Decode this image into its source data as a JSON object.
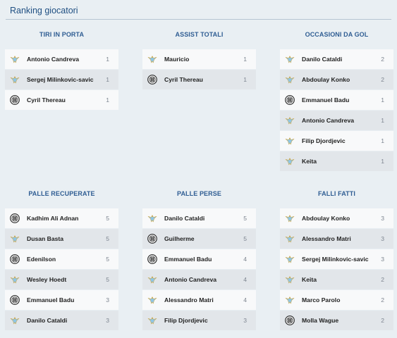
{
  "title": "Ranking giocatori",
  "panels": [
    {
      "title": "TIRI IN PORTA",
      "rows": [
        {
          "name": "Antonio Candreva",
          "value": "1",
          "team": "lazio"
        },
        {
          "name": "Sergej Milinkovic-savic",
          "value": "1",
          "team": "lazio"
        },
        {
          "name": "Cyril Thereau",
          "value": "1",
          "team": "udinese"
        }
      ]
    },
    {
      "title": "ASSIST TOTALI",
      "rows": [
        {
          "name": "Mauricio",
          "value": "1",
          "team": "lazio"
        },
        {
          "name": "Cyril Thereau",
          "value": "1",
          "team": "udinese"
        }
      ]
    },
    {
      "title": "OCCASIONI DA GOL",
      "rows": [
        {
          "name": "Danilo Cataldi",
          "value": "2",
          "team": "lazio"
        },
        {
          "name": "Abdoulay Konko",
          "value": "2",
          "team": "lazio"
        },
        {
          "name": "Emmanuel Badu",
          "value": "1",
          "team": "udinese"
        },
        {
          "name": "Antonio Candreva",
          "value": "1",
          "team": "lazio"
        },
        {
          "name": "Filip Djordjevic",
          "value": "1",
          "team": "lazio"
        },
        {
          "name": "Keita",
          "value": "1",
          "team": "lazio"
        }
      ]
    },
    {
      "title": "PALLE RECUPERATE",
      "rows": [
        {
          "name": "Kadhim Ali Adnan",
          "value": "5",
          "team": "udinese"
        },
        {
          "name": "Dusan Basta",
          "value": "5",
          "team": "lazio"
        },
        {
          "name": "Edenilson",
          "value": "5",
          "team": "udinese"
        },
        {
          "name": "Wesley Hoedt",
          "value": "5",
          "team": "lazio"
        },
        {
          "name": "Emmanuel Badu",
          "value": "3",
          "team": "udinese"
        },
        {
          "name": "Danilo Cataldi",
          "value": "3",
          "team": "lazio"
        }
      ]
    },
    {
      "title": "PALLE PERSE",
      "rows": [
        {
          "name": "Danilo Cataldi",
          "value": "5",
          "team": "lazio"
        },
        {
          "name": "Guilherme",
          "value": "5",
          "team": "udinese"
        },
        {
          "name": "Emmanuel Badu",
          "value": "4",
          "team": "udinese"
        },
        {
          "name": "Antonio Candreva",
          "value": "4",
          "team": "lazio"
        },
        {
          "name": "Alessandro Matri",
          "value": "4",
          "team": "lazio"
        },
        {
          "name": "Filip Djordjevic",
          "value": "3",
          "team": "lazio"
        }
      ]
    },
    {
      "title": "FALLI FATTI",
      "rows": [
        {
          "name": "Abdoulay Konko",
          "value": "3",
          "team": "lazio"
        },
        {
          "name": "Alessandro Matri",
          "value": "3",
          "team": "lazio"
        },
        {
          "name": "Sergej Milinkovic-savic",
          "value": "3",
          "team": "lazio"
        },
        {
          "name": "Keita",
          "value": "2",
          "team": "lazio"
        },
        {
          "name": "Marco Parolo",
          "value": "2",
          "team": "lazio"
        },
        {
          "name": "Molla Wague",
          "value": "2",
          "team": "udinese"
        }
      ]
    }
  ]
}
